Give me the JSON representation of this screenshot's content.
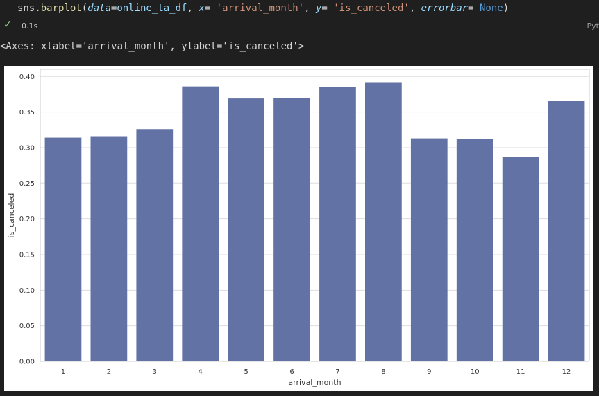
{
  "code_cell": {
    "tokens": [
      {
        "t": "sns.",
        "c": "tk-plain"
      },
      {
        "t": "barplot",
        "c": "tk-fn"
      },
      {
        "t": "(",
        "c": "tk-plain"
      },
      {
        "t": "data",
        "c": "tk-param"
      },
      {
        "t": "=",
        "c": "tk-plain"
      },
      {
        "t": "online_ta_df",
        "c": "tk-var"
      },
      {
        "t": ", ",
        "c": "tk-plain"
      },
      {
        "t": "x",
        "c": "tk-param"
      },
      {
        "t": "= ",
        "c": "tk-plain"
      },
      {
        "t": "'arrival_month'",
        "c": "tk-str"
      },
      {
        "t": ", ",
        "c": "tk-plain"
      },
      {
        "t": "y",
        "c": "tk-param"
      },
      {
        "t": "= ",
        "c": "tk-plain"
      },
      {
        "t": "'is_canceled'",
        "c": "tk-str"
      },
      {
        "t": ", ",
        "c": "tk-plain"
      },
      {
        "t": "errorbar",
        "c": "tk-param"
      },
      {
        "t": "= ",
        "c": "tk-plain"
      },
      {
        "t": "None",
        "c": "tk-const"
      },
      {
        "t": ")",
        "c": "tk-plain"
      }
    ],
    "status_icon": "check-icon",
    "exec_time": "0.1s",
    "kernel_label": "Pyt"
  },
  "output": {
    "repr_text": "<Axes: xlabel='arrival_month', ylabel='is_canceled'>"
  },
  "colors": {
    "bar": "#6272a4",
    "grid": "#dddddd",
    "axis_text": "#333333"
  },
  "chart_data": {
    "type": "bar",
    "xlabel": "arrival_month",
    "ylabel": "is_canceled",
    "categories": [
      "1",
      "2",
      "3",
      "4",
      "5",
      "6",
      "7",
      "8",
      "9",
      "10",
      "11",
      "12"
    ],
    "values": [
      0.314,
      0.316,
      0.326,
      0.386,
      0.369,
      0.37,
      0.385,
      0.392,
      0.313,
      0.312,
      0.287,
      0.366
    ],
    "ylim": [
      0,
      0.41
    ],
    "yticks": [
      "0.00",
      "0.05",
      "0.10",
      "0.15",
      "0.20",
      "0.25",
      "0.30",
      "0.35",
      "0.40"
    ],
    "grid": true
  }
}
